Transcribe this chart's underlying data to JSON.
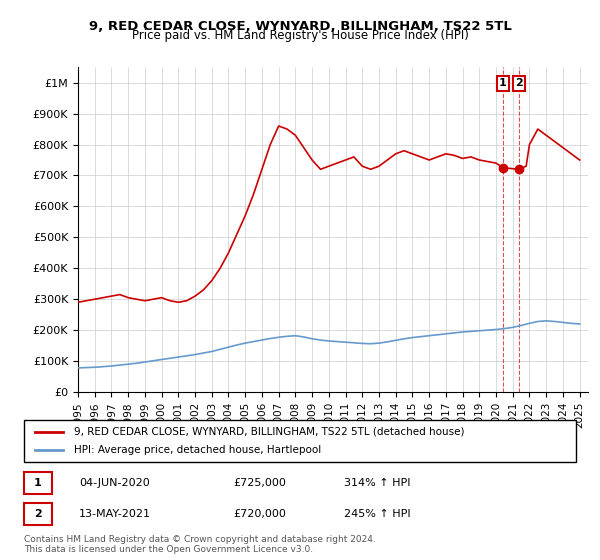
{
  "title": "9, RED CEDAR CLOSE, WYNYARD, BILLINGHAM, TS22 5TL",
  "subtitle": "Price paid vs. HM Land Registry's House Price Index (HPI)",
  "legend_line1": "9, RED CEDAR CLOSE, WYNYARD, BILLINGHAM, TS22 5TL (detached house)",
  "legend_line2": "HPI: Average price, detached house, Hartlepool",
  "footer": "Contains HM Land Registry data © Crown copyright and database right 2024.\nThis data is licensed under the Open Government Licence v3.0.",
  "xlim": [
    1995,
    2025.5
  ],
  "ylim": [
    0,
    1050000
  ],
  "yticks": [
    0,
    100000,
    200000,
    300000,
    400000,
    500000,
    600000,
    700000,
    800000,
    900000,
    1000000
  ],
  "ytick_labels": [
    "£0",
    "£100K",
    "£200K",
    "£300K",
    "£400K",
    "£500K",
    "£600K",
    "£700K",
    "£800K",
    "£900K",
    "£1M"
  ],
  "xticks": [
    1995,
    1996,
    1997,
    1998,
    1999,
    2000,
    2001,
    2002,
    2003,
    2004,
    2005,
    2006,
    2007,
    2008,
    2009,
    2010,
    2011,
    2012,
    2013,
    2014,
    2015,
    2016,
    2017,
    2018,
    2019,
    2020,
    2021,
    2022,
    2023,
    2024,
    2025
  ],
  "red_color": "#cc0000",
  "blue_color": "#6699cc",
  "point1_x": 2020.42,
  "point1_y": 725000,
  "point1_label": "1",
  "point1_date": "04-JUN-2020",
  "point1_price": "£725,000",
  "point1_hpi": "314% ↑ HPI",
  "point2_x": 2021.37,
  "point2_y": 720000,
  "point2_label": "2",
  "point2_date": "13-MAY-2021",
  "point2_price": "£720,000",
  "point2_hpi": "245% ↑ HPI",
  "red_x": [
    1995.0,
    1995.5,
    1996.0,
    1996.5,
    1997.0,
    1997.5,
    1998.0,
    1998.5,
    1999.0,
    1999.5,
    2000.0,
    2000.5,
    2001.0,
    2001.5,
    2002.0,
    2002.5,
    2003.0,
    2003.5,
    2004.0,
    2004.5,
    2005.0,
    2005.5,
    2006.0,
    2006.5,
    2007.0,
    2007.5,
    2008.0,
    2008.5,
    2009.0,
    2009.5,
    2010.0,
    2010.5,
    2011.0,
    2011.5,
    2012.0,
    2012.5,
    2013.0,
    2013.5,
    2014.0,
    2014.5,
    2015.0,
    2015.5,
    2016.0,
    2016.5,
    2017.0,
    2017.5,
    2018.0,
    2018.5,
    2019.0,
    2019.5,
    2020.0,
    2020.42,
    2021.37,
    2021.8,
    2022.0,
    2022.5,
    2023.0,
    2023.5,
    2024.0,
    2024.5,
    2025.0
  ],
  "red_y": [
    290000,
    295000,
    300000,
    305000,
    310000,
    315000,
    305000,
    300000,
    295000,
    300000,
    305000,
    295000,
    290000,
    295000,
    310000,
    330000,
    360000,
    400000,
    450000,
    510000,
    570000,
    640000,
    720000,
    800000,
    860000,
    850000,
    830000,
    790000,
    750000,
    720000,
    730000,
    740000,
    750000,
    760000,
    730000,
    720000,
    730000,
    750000,
    770000,
    780000,
    770000,
    760000,
    750000,
    760000,
    770000,
    765000,
    755000,
    760000,
    750000,
    745000,
    740000,
    725000,
    720000,
    730000,
    800000,
    850000,
    830000,
    810000,
    790000,
    770000,
    750000
  ],
  "blue_x": [
    1995.0,
    1995.5,
    1996.0,
    1996.5,
    1997.0,
    1997.5,
    1998.0,
    1998.5,
    1999.0,
    1999.5,
    2000.0,
    2000.5,
    2001.0,
    2001.5,
    2002.0,
    2002.5,
    2003.0,
    2003.5,
    2004.0,
    2004.5,
    2005.0,
    2005.5,
    2006.0,
    2006.5,
    2007.0,
    2007.5,
    2008.0,
    2008.5,
    2009.0,
    2009.5,
    2010.0,
    2010.5,
    2011.0,
    2011.5,
    2012.0,
    2012.5,
    2013.0,
    2013.5,
    2014.0,
    2014.5,
    2015.0,
    2015.5,
    2016.0,
    2016.5,
    2017.0,
    2017.5,
    2018.0,
    2018.5,
    2019.0,
    2019.5,
    2020.0,
    2020.5,
    2021.0,
    2021.5,
    2022.0,
    2022.5,
    2023.0,
    2023.5,
    2024.0,
    2024.5,
    2025.0
  ],
  "blue_y": [
    78000,
    79000,
    80000,
    82000,
    84000,
    87000,
    90000,
    93000,
    97000,
    101000,
    105000,
    109000,
    113000,
    117000,
    121000,
    126000,
    131000,
    138000,
    145000,
    152000,
    158000,
    163000,
    168000,
    173000,
    177000,
    180000,
    182000,
    178000,
    172000,
    168000,
    165000,
    163000,
    161000,
    159000,
    157000,
    156000,
    158000,
    162000,
    167000,
    172000,
    176000,
    179000,
    182000,
    185000,
    188000,
    191000,
    194000,
    196000,
    198000,
    200000,
    202000,
    205000,
    209000,
    215000,
    222000,
    228000,
    230000,
    228000,
    225000,
    222000,
    220000
  ]
}
